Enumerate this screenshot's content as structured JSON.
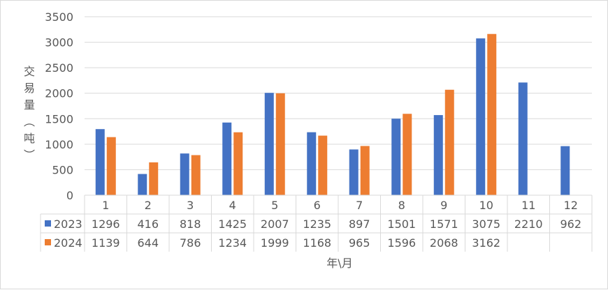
{
  "chart_data": {
    "type": "bar",
    "title": "",
    "xlabel": "年\\月",
    "ylabel": "交易量（吨）",
    "ylim": [
      0,
      3500
    ],
    "yticks": [
      0,
      500,
      1000,
      1500,
      2000,
      2500,
      3000,
      3500
    ],
    "grid": true,
    "legend": "data-table-left",
    "categories": [
      "1",
      "2",
      "3",
      "4",
      "5",
      "6",
      "7",
      "8",
      "9",
      "10",
      "11",
      "12"
    ],
    "series": [
      {
        "name": "2023",
        "color": "#4472c4",
        "values": [
          1296,
          416,
          818,
          1425,
          2007,
          1235,
          897,
          1501,
          1571,
          3075,
          2210,
          962
        ]
      },
      {
        "name": "2024",
        "color": "#ed7d31",
        "values": [
          1139,
          644,
          786,
          1234,
          1999,
          1168,
          965,
          1596,
          2068,
          3162,
          null,
          null
        ]
      }
    ]
  }
}
